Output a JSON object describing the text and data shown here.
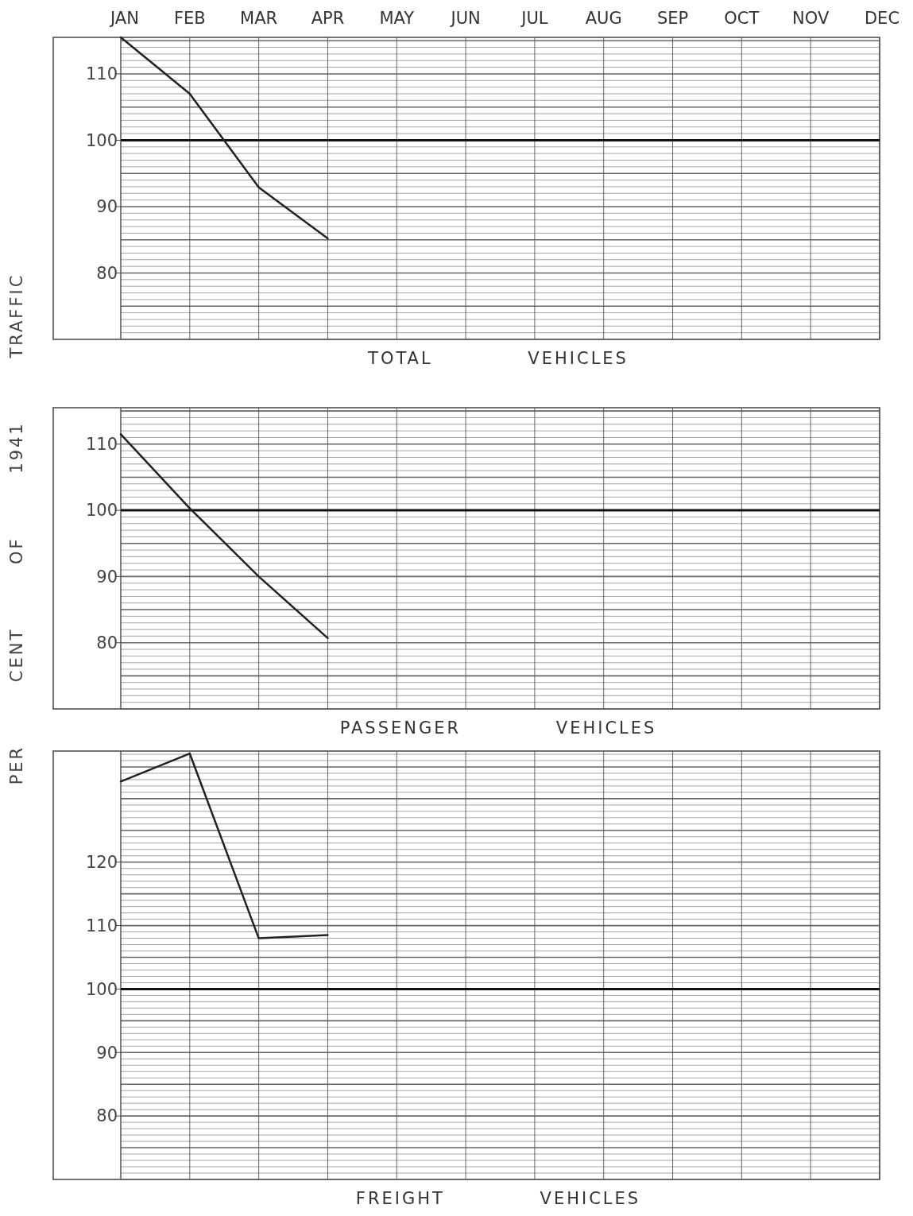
{
  "chart_data": [
    {
      "type": "line",
      "categories": [
        "JAN",
        "FEB",
        "MAR",
        "APR",
        "MAY",
        "JUN",
        "JUL",
        "AUG",
        "SEP",
        "OCT",
        "NOV",
        "DEC"
      ],
      "xlabel": "TOTAL VEHICLES",
      "ylim": [
        70,
        115.5
      ],
      "yticks": [
        80,
        90,
        100,
        110
      ],
      "grid": true,
      "ref_lines": [
        {
          "axis": "y",
          "value": 100
        }
      ],
      "series": [
        {
          "color": "#222222",
          "values": [
            115.5,
            107,
            92.9,
            85.2,
            null,
            null,
            null,
            null,
            null,
            null,
            null,
            null
          ]
        }
      ]
    },
    {
      "type": "line",
      "categories": [
        null,
        null,
        null,
        null,
        null,
        null,
        null,
        null,
        null,
        null,
        null,
        null
      ],
      "xlabel": "PASSENGER VEHICLES",
      "ylabel": "PER CENT OF 1941 TRAFFIC",
      "ylim": [
        70,
        115.5
      ],
      "yticks": [
        80,
        90,
        100,
        110
      ],
      "grid": true,
      "tick_labels": "y",
      "ref_lines": [
        {
          "axis": "y",
          "value": 100
        }
      ],
      "series": [
        {
          "color": "#222222",
          "values": [
            111.5,
            100.3,
            90,
            80.7,
            null,
            null,
            null,
            null,
            null,
            null,
            null,
            null
          ]
        }
      ]
    },
    {
      "type": "line",
      "categories": [
        null,
        null,
        null,
        null,
        null,
        null,
        null,
        null,
        null,
        null,
        null,
        null
      ],
      "xlabel": "FREIGHT VEHICLES",
      "ylim": [
        70,
        137.5
      ],
      "yticks": [
        80,
        90,
        100,
        110,
        120
      ],
      "grid": true,
      "tick_labels": "y",
      "ref_lines": [
        {
          "axis": "y",
          "value": 100
        }
      ],
      "series": [
        {
          "color": "#222222",
          "values": [
            132.7,
            137.1,
            108,
            108.5,
            null,
            null,
            null,
            null,
            null,
            null,
            null,
            null
          ]
        }
      ]
    }
  ]
}
